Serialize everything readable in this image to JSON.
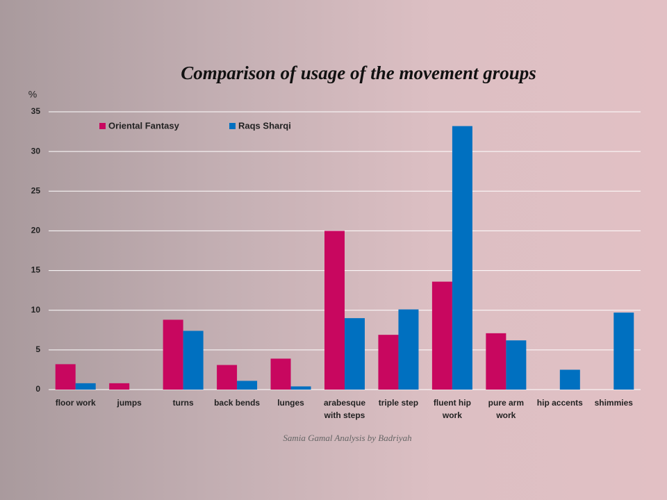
{
  "chart_data": {
    "type": "bar",
    "title": "Comparison of usage of the movement groups",
    "y_label": "%",
    "footer": "Samia Gamal Analysis by Badriyah",
    "categories": [
      "floor work",
      "jumps",
      "turns",
      "back bends",
      "lunges",
      "arabesque with steps",
      "triple step",
      "fluent hip work",
      "pure arm work",
      "hip accents",
      "shimmies"
    ],
    "series": [
      {
        "name": "Oriental Fantasy",
        "color": "#c8075f",
        "values": [
          3.2,
          0.8,
          8.8,
          3.1,
          3.9,
          20,
          6.9,
          13.6,
          7.1,
          0,
          0
        ]
      },
      {
        "name": "Raqs Sharqi",
        "color": "#0070c0",
        "values": [
          0.8,
          0,
          7.4,
          1.1,
          0.4,
          9.0,
          10.1,
          33.2,
          6.2,
          2.5,
          9.7
        ]
      }
    ],
    "ylim": [
      0,
      35
    ],
    "yticks": [
      0,
      5,
      10,
      15,
      20,
      25,
      30,
      35
    ],
    "grid": true,
    "legend": "top-left"
  }
}
